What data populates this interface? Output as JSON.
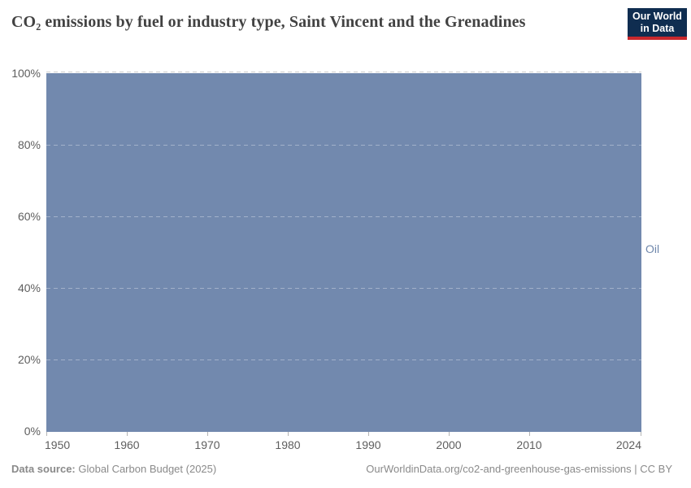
{
  "header": {
    "title": "CO₂ emissions by fuel or industry type, Saint Vincent and the Grenadines",
    "logo": {
      "line1": "Our World",
      "line2": "in Data"
    }
  },
  "chart_data": {
    "type": "area",
    "stacked": true,
    "relative_mode": "100% share of total",
    "title": "CO₂ emissions by fuel or industry type, Saint Vincent and the Grenadines",
    "categories": [
      1950,
      1960,
      1970,
      1980,
      1990,
      2000,
      2010,
      2024
    ],
    "series": [
      {
        "name": "Oil",
        "color": "#7289ae",
        "values": [
          100,
          100,
          100,
          100,
          100,
          100,
          100,
          100
        ],
        "note": "Oil accounts for 100% of emissions across the entire 1950–2024 range"
      }
    ],
    "xlabel": "",
    "ylabel": "",
    "xlim": [
      1950,
      2024
    ],
    "ylim": [
      0,
      100
    ],
    "y_tick_labels": [
      "0%",
      "20%",
      "40%",
      "60%",
      "80%",
      "100%"
    ],
    "x_tick_labels": [
      "1950",
      "1960",
      "1970",
      "1980",
      "1990",
      "2000",
      "2010",
      "2024"
    ],
    "grid": "horizontal dashed gridlines at 20% intervals",
    "legend": "inline series label at right edge"
  },
  "axes": {
    "y_labels": [
      "100%",
      "80%",
      "60%",
      "40%",
      "20%",
      "0%"
    ],
    "x_labels": [
      "1950",
      "1960",
      "1970",
      "1980",
      "1990",
      "2000",
      "2010",
      "2024"
    ]
  },
  "plot": {
    "series_label": "Oil",
    "fill_color": "#7289ae"
  },
  "footer": {
    "source_label": "Data source:",
    "source_value": "Global Carbon Budget (2025)",
    "attribution": "OurWorldinData.org/co2-and-greenhouse-gas-emissions | CC BY"
  },
  "colors": {
    "area_fill": "#7289ae",
    "logo_background": "#0f2d50",
    "logo_accent": "#c8282d",
    "title_text": "#424242",
    "axis_text": "#5e5e5e",
    "footer_text": "#8a8a8a"
  }
}
